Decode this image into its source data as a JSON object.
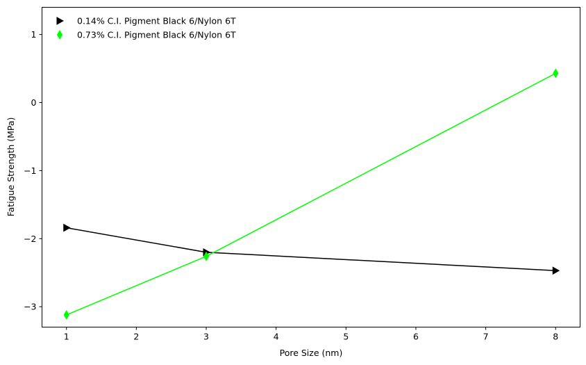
{
  "chart_data": {
    "type": "line",
    "title": "",
    "xlabel": "Pore Size (nm)",
    "ylabel": "Fatigue Strength (MPa)",
    "xlim": [
      0.65,
      8.35
    ],
    "ylim": [
      -3.3,
      1.4
    ],
    "xticks": [
      "1",
      "2",
      "3",
      "4",
      "5",
      "6",
      "7",
      "8"
    ],
    "yticks": [
      "−3",
      "−2",
      "−1",
      "0",
      "1"
    ],
    "grid": false,
    "legend_position": "top-left",
    "series": [
      {
        "name": "0.14% C.I. Pigment Black 6/Nylon 6T",
        "color": "#000000",
        "marker": "triangle-right",
        "x": [
          1,
          3,
          8
        ],
        "y": [
          -1.84,
          -2.2,
          -2.47
        ]
      },
      {
        "name": "0.73% C.I. Pigment Black 6/Nylon 6T",
        "color": "#00ff00",
        "marker": "thin-diamond",
        "x": [
          1,
          3,
          8
        ],
        "y": [
          -3.12,
          -2.26,
          0.43
        ]
      }
    ]
  }
}
